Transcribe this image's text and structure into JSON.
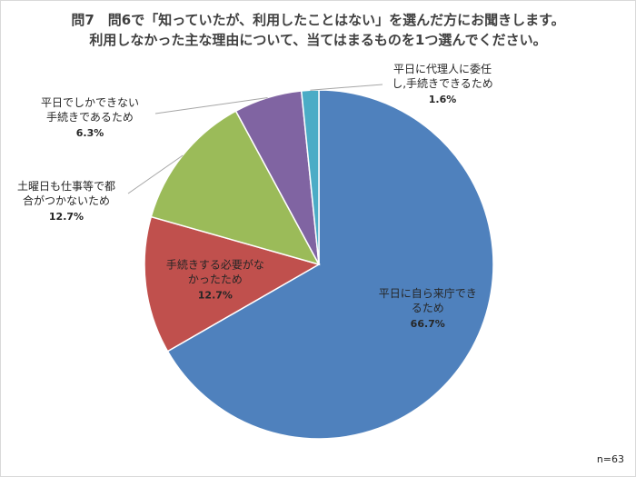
{
  "title_line1": "問7　問6で「知っていたが、利用したことはない」を選んだ方にお聞きします。",
  "title_line2": "利用しなかった主な理由について、当てはまるものを1つ選んでください。",
  "sample_note": "n=63",
  "chart_data": {
    "type": "pie",
    "start_angle_deg": 0,
    "direction": "clockwise",
    "slices": [
      {
        "label_lines": [
          "平日に自ら来庁でき",
          "るため"
        ],
        "percent_label": "66.7%",
        "value": 66.7,
        "color": "#4f81bd",
        "label_placement": "inside"
      },
      {
        "label_lines": [
          "手続きする必要がな",
          "かったため"
        ],
        "percent_label": "12.7%",
        "value": 12.7,
        "color": "#c0504d",
        "label_placement": "inside"
      },
      {
        "label_lines": [
          "土曜日も仕事等で都",
          "合がつかないため"
        ],
        "percent_label": "12.7%",
        "value": 12.7,
        "color": "#9bbb59",
        "label_placement": "outside"
      },
      {
        "label_lines": [
          "平日でしかできない",
          "手続きであるため"
        ],
        "percent_label": "6.3%",
        "value": 6.3,
        "color": "#8064a2",
        "label_placement": "outside"
      },
      {
        "label_lines": [
          "平日に代理人に委任",
          "し,手続きできるため"
        ],
        "percent_label": "1.6%",
        "value": 1.6,
        "color": "#4bacc6",
        "label_placement": "outside"
      }
    ]
  }
}
